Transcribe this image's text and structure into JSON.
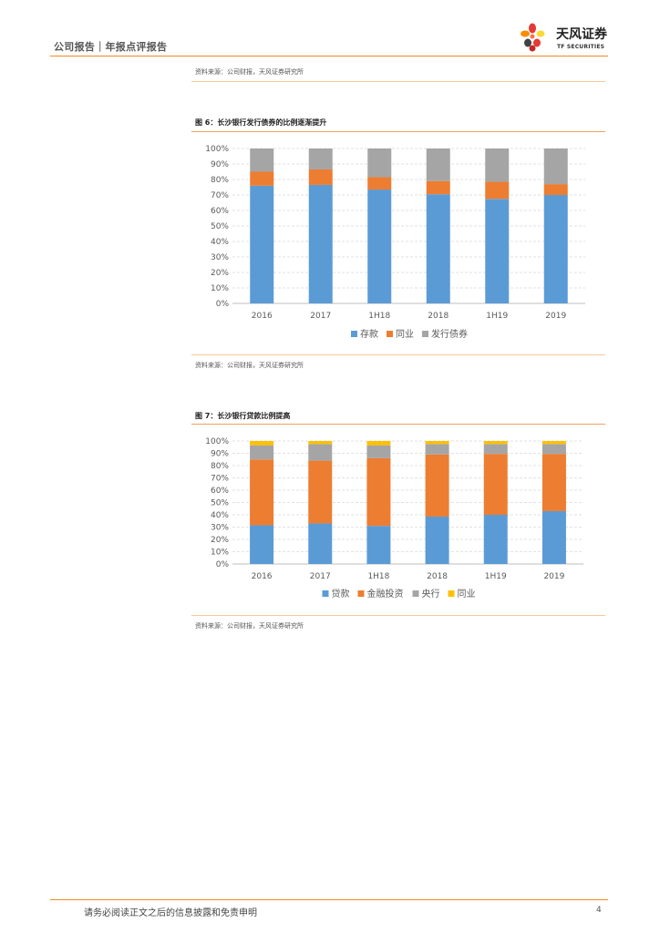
{
  "header": {
    "left_text": "公司报告｜年报点评报告",
    "logo_cn": "天风证券",
    "logo_en": "TF SECURITIES"
  },
  "source_top": "资料来源：公司财报，天风证券研究所",
  "figure6": {
    "title": "图 6：长沙银行发行债券的比例逐渐提升",
    "source": "资料来源：公司财报，天风证券研究所"
  },
  "figure7": {
    "title": "图 7：长沙银行贷款比例提高",
    "source": "资料来源：公司财报，天风证券研究所"
  },
  "footer": {
    "disclaimer": "请务必阅读正文之后的信息披露和免责申明",
    "page": "4"
  },
  "colors": {
    "blue": "#5b9bd5",
    "orange": "#ed7d31",
    "gray": "#a5a5a5",
    "yellow": "#ffc000",
    "accent": "#f08a24"
  },
  "chart_data": [
    {
      "type": "bar",
      "stacked": true,
      "title": "",
      "categories": [
        "2016",
        "2017",
        "1H18",
        "2018",
        "1H19",
        "2019"
      ],
      "series": [
        {
          "name": "存款",
          "color": "#5b9bd5",
          "values": [
            76,
            76.5,
            73.5,
            70.5,
            67.5,
            70
          ]
        },
        {
          "name": "同业",
          "color": "#ed7d31",
          "values": [
            9,
            10,
            8,
            8.5,
            11,
            7
          ]
        },
        {
          "name": "发行债券",
          "color": "#a5a5a5",
          "values": [
            15,
            13.5,
            18.5,
            21,
            21.5,
            23
          ]
        }
      ],
      "ylim": [
        0,
        100
      ],
      "yticks": [
        "0%",
        "10%",
        "20%",
        "30%",
        "40%",
        "50%",
        "60%",
        "70%",
        "80%",
        "90%",
        "100%"
      ],
      "grid": true,
      "legend": "bottom"
    },
    {
      "type": "bar",
      "stacked": true,
      "title": "",
      "categories": [
        "2016",
        "2017",
        "1H18",
        "2018",
        "1H19",
        "2019"
      ],
      "series": [
        {
          "name": "贷款",
          "color": "#5b9bd5",
          "values": [
            31.5,
            33,
            31,
            38.5,
            40,
            43
          ]
        },
        {
          "name": "金融投资",
          "color": "#ed7d31",
          "values": [
            53.5,
            51,
            55,
            50.5,
            49.5,
            46.5
          ]
        },
        {
          "name": "央行",
          "color": "#a5a5a5",
          "values": [
            11.5,
            13.5,
            10.5,
            8.5,
            8,
            8
          ]
        },
        {
          "name": "同业",
          "color": "#ffc000",
          "values": [
            3.5,
            2.5,
            3.5,
            2.5,
            2.5,
            2.5
          ]
        }
      ],
      "ylim": [
        0,
        100
      ],
      "yticks": [
        "0%",
        "10%",
        "20%",
        "30%",
        "40%",
        "50%",
        "60%",
        "70%",
        "80%",
        "90%",
        "100%"
      ],
      "grid": true,
      "legend": "bottom"
    }
  ]
}
